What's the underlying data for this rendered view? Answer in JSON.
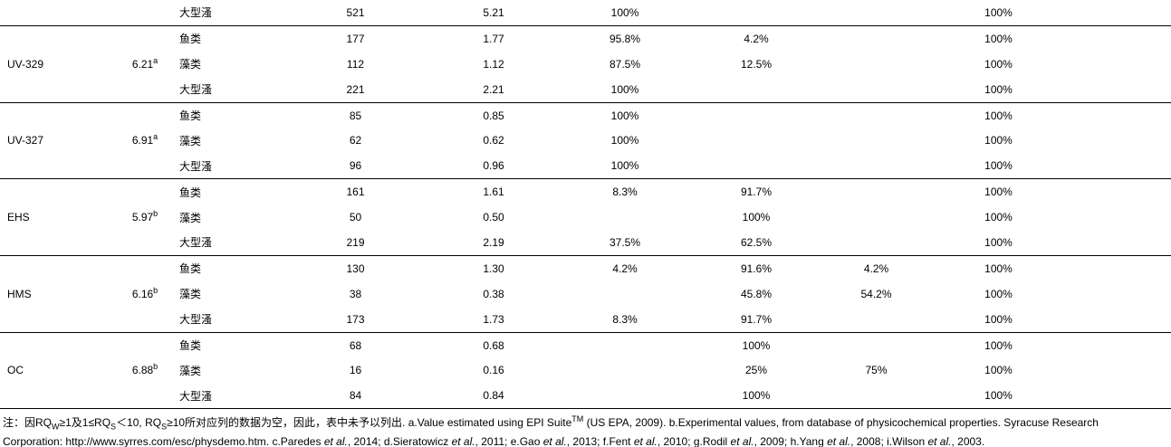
{
  "page": {
    "background_color": "#ffffff",
    "text_color": "#000000",
    "rule_color": "#000000"
  },
  "table": {
    "column_keys": [
      "compound",
      "log_kow",
      "organism",
      "count",
      "rq",
      "p1",
      "p2",
      "p3",
      "p4",
      "filler"
    ],
    "organisms": [
      "鱼类",
      "藻类",
      "大型溞"
    ],
    "rows": [
      {
        "compound": "",
        "value": "",
        "value_sup": "",
        "organism": "大型溞",
        "count": "521",
        "rq": "5.21",
        "p1": "100%",
        "p2": "",
        "p3": "",
        "p4": "100%",
        "group_end": true
      },
      {
        "compound": "",
        "value": "",
        "value_sup": "",
        "organism": "鱼类",
        "count": "177",
        "rq": "1.77",
        "p1": "95.8%",
        "p2": "4.2%",
        "p3": "",
        "p4": "100%",
        "group_end": false
      },
      {
        "compound": "UV-329",
        "value": "6.21",
        "value_sup": "a",
        "organism": "藻类",
        "count": "112",
        "rq": "1.12",
        "p1": "87.5%",
        "p2": "12.5%",
        "p3": "",
        "p4": "100%",
        "group_end": false
      },
      {
        "compound": "",
        "value": "",
        "value_sup": "",
        "organism": "大型溞",
        "count": "221",
        "rq": "2.21",
        "p1": "100%",
        "p2": "",
        "p3": "",
        "p4": "100%",
        "group_end": true
      },
      {
        "compound": "",
        "value": "",
        "value_sup": "",
        "organism": "鱼类",
        "count": "85",
        "rq": "0.85",
        "p1": "100%",
        "p2": "",
        "p3": "",
        "p4": "100%",
        "group_end": false
      },
      {
        "compound": "UV-327",
        "value": "6.91",
        "value_sup": "a",
        "organism": "藻类",
        "count": "62",
        "rq": "0.62",
        "p1": "100%",
        "p2": "",
        "p3": "",
        "p4": "100%",
        "group_end": false
      },
      {
        "compound": "",
        "value": "",
        "value_sup": "",
        "organism": "大型溞",
        "count": "96",
        "rq": "0.96",
        "p1": "100%",
        "p2": "",
        "p3": "",
        "p4": "100%",
        "group_end": true
      },
      {
        "compound": "",
        "value": "",
        "value_sup": "",
        "organism": "鱼类",
        "count": "161",
        "rq": "1.61",
        "p1": "8.3%",
        "p2": "91.7%",
        "p3": "",
        "p4": "100%",
        "group_end": false
      },
      {
        "compound": "EHS",
        "value": "5.97",
        "value_sup": "b",
        "organism": "藻类",
        "count": "50",
        "rq": "0.50",
        "p1": "",
        "p2": "100%",
        "p3": "",
        "p4": "100%",
        "group_end": false
      },
      {
        "compound": "",
        "value": "",
        "value_sup": "",
        "organism": "大型溞",
        "count": "219",
        "rq": "2.19",
        "p1": "37.5%",
        "p2": "62.5%",
        "p3": "",
        "p4": "100%",
        "group_end": true
      },
      {
        "compound": "",
        "value": "",
        "value_sup": "",
        "organism": "鱼类",
        "count": "130",
        "rq": "1.30",
        "p1": "4.2%",
        "p2": "91.6%",
        "p3": "4.2%",
        "p4": "100%",
        "group_end": false
      },
      {
        "compound": "HMS",
        "value": "6.16",
        "value_sup": "b",
        "organism": "藻类",
        "count": "38",
        "rq": "0.38",
        "p1": "",
        "p2": "45.8%",
        "p3": "54.2%",
        "p4": "100%",
        "group_end": false
      },
      {
        "compound": "",
        "value": "",
        "value_sup": "",
        "organism": "大型溞",
        "count": "173",
        "rq": "1.73",
        "p1": "8.3%",
        "p2": "91.7%",
        "p3": "",
        "p4": "100%",
        "group_end": true
      },
      {
        "compound": "",
        "value": "",
        "value_sup": "",
        "organism": "鱼类",
        "count": "68",
        "rq": "0.68",
        "p1": "",
        "p2": "100%",
        "p3": "",
        "p4": "100%",
        "group_end": false
      },
      {
        "compound": "OC",
        "value": "6.88",
        "value_sup": "b",
        "organism": "藻类",
        "count": "16",
        "rq": "0.16",
        "p1": "",
        "p2": "25%",
        "p3": "75%",
        "p4": "100%",
        "group_end": false
      },
      {
        "compound": "",
        "value": "",
        "value_sup": "",
        "organism": "大型溞",
        "count": "84",
        "rq": "0.84",
        "p1": "",
        "p2": "100%",
        "p3": "",
        "p4": "100%",
        "group_end": true
      }
    ]
  },
  "footnote": {
    "lines": [
      [
        {
          "t": "注：因RQ"
        },
        {
          "t": "W",
          "s": "sub"
        },
        {
          "t": "≥1及1≤RQ"
        },
        {
          "t": "S",
          "s": "sub"
        },
        {
          "t": "＜10, RQ"
        },
        {
          "t": "S",
          "s": "sub"
        },
        {
          "t": "≥10所对应列的数据为空，因此，表中未予以列出. a.Value estimated using EPI Suite"
        },
        {
          "t": "TM",
          "s": "sup"
        },
        {
          "t": " (US EPA, 2009). b.Experimental values, from database of physicochemical properties. Syracuse Research"
        }
      ],
      [
        {
          "t": "Corporation: http://www.syrres.com/esc/physdemo.htm. c.Paredes "
        },
        {
          "t": "et al.",
          "s": "i"
        },
        {
          "t": ", 2014; d.Sieratowicz "
        },
        {
          "t": "et al.",
          "s": "i"
        },
        {
          "t": ", 2011; e.Gao "
        },
        {
          "t": "et al.",
          "s": "i"
        },
        {
          "t": ", 2013; f.Fent "
        },
        {
          "t": "et al.",
          "s": "i"
        },
        {
          "t": ", 2010; g.Rodil "
        },
        {
          "t": "et al.",
          "s": "i"
        },
        {
          "t": ", 2009; h.Yang "
        },
        {
          "t": "et al.",
          "s": "i"
        },
        {
          "t": ", 2008; i.Wilson "
        },
        {
          "t": "et al.",
          "s": "i"
        },
        {
          "t": ", 2003."
        }
      ]
    ]
  }
}
